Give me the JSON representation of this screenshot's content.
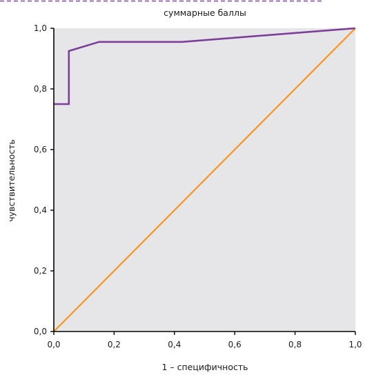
{
  "chart_data": {
    "type": "line",
    "title": "суммарные баллы",
    "xlabel": "1 – специфичность",
    "ylabel": "чувствительность",
    "xlim": [
      0,
      1
    ],
    "ylim": [
      0,
      1
    ],
    "xticks": [
      "0,0",
      "0,2",
      "0,4",
      "0,6",
      "0,8",
      "1,0"
    ],
    "yticks": [
      "0,0",
      "0,2",
      "0,4",
      "0,6",
      "0,8",
      "1,0"
    ],
    "xtick_values": [
      0,
      0.2,
      0.4,
      0.6,
      0.8,
      1.0
    ],
    "ytick_values": [
      0,
      0.2,
      0.4,
      0.6,
      0.8,
      1.0
    ],
    "grid": false,
    "background_color": "#e6e6e8",
    "series": [
      {
        "color": "#7b3f98",
        "x": [
          0.0,
          0.05,
          0.05,
          0.05,
          0.15,
          0.425,
          1.0
        ],
        "y": [
          0.75,
          0.75,
          0.875,
          0.925,
          0.955,
          0.955,
          1.0
        ]
      },
      {
        "color": "#f7941d",
        "x": [
          0.0,
          1.0
        ],
        "y": [
          0.0,
          1.0
        ]
      }
    ],
    "header_rule_color": "#9b6fb4"
  }
}
